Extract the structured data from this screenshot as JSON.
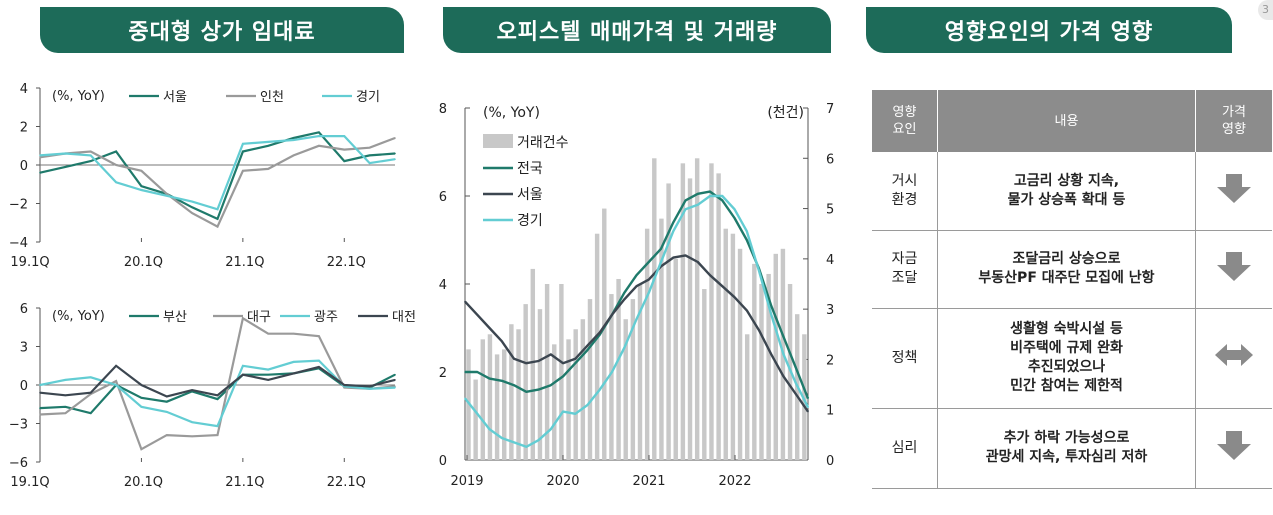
{
  "titles": {
    "panel1": "중대형 상가 임대료",
    "panel2": "오피스텔 매매가격 및 거래량",
    "panel3": "영향요인의 가격 영향"
  },
  "colors": {
    "banner": "#1d6b59",
    "teal": "#1f7a6b",
    "gray": "#9a9a9a",
    "cyan": "#63cdd3",
    "dark": "#3c4650",
    "bar": "#c8c8c8"
  },
  "corner_label": "3",
  "chart_data": [
    {
      "type": "line",
      "title": "중대형 상가 임대료 (상단)",
      "ylabel": "(%, YoY)",
      "ylim": [
        -4,
        4
      ],
      "yticks": [
        "4",
        "2",
        "0",
        "−2",
        "−4"
      ],
      "xticks": [
        "19.1Q",
        "20.1Q",
        "21.1Q",
        "22.1Q"
      ],
      "x": [
        0,
        1,
        2,
        3,
        4,
        5,
        6,
        7,
        8,
        9,
        10,
        11,
        12,
        13,
        14
      ],
      "series": [
        {
          "name": "서울",
          "values": [
            -0.4,
            -0.1,
            0.2,
            0.7,
            -1.1,
            -1.5,
            -2.2,
            -2.8,
            0.7,
            1.0,
            1.4,
            1.7,
            0.2,
            0.5,
            0.6
          ]
        },
        {
          "name": "인천",
          "values": [
            0.4,
            0.6,
            0.7,
            0.0,
            -0.3,
            -1.5,
            -2.5,
            -3.2,
            -0.3,
            -0.2,
            0.5,
            1.0,
            0.8,
            0.9,
            1.4
          ]
        },
        {
          "name": "경기",
          "values": [
            0.5,
            0.6,
            0.5,
            -0.9,
            -1.3,
            -1.6,
            -1.9,
            -2.3,
            1.1,
            1.2,
            1.3,
            1.5,
            1.5,
            0.1,
            0.3
          ]
        }
      ]
    },
    {
      "type": "line",
      "title": "중대형 상가 임대료 (하단)",
      "ylabel": "(%, YoY)",
      "ylim": [
        -6,
        6
      ],
      "yticks": [
        "6",
        "3",
        "0",
        "−3",
        "−6"
      ],
      "xticks": [
        "19.1Q",
        "20.1Q",
        "21.1Q",
        "22.1Q"
      ],
      "x": [
        0,
        1,
        2,
        3,
        4,
        5,
        6,
        7,
        8,
        9,
        10,
        11,
        12,
        13,
        14
      ],
      "series": [
        {
          "name": "부산",
          "values": [
            -1.8,
            -1.7,
            -2.2,
            0.0,
            -1.0,
            -1.3,
            -0.5,
            -1.1,
            0.8,
            0.8,
            0.9,
            1.3,
            -0.1,
            -0.2,
            0.8
          ]
        },
        {
          "name": "대구",
          "values": [
            -2.3,
            -2.2,
            -0.7,
            0.3,
            -5.0,
            -3.9,
            -4.0,
            -3.9,
            5.2,
            4.0,
            4.0,
            3.8,
            -0.2,
            -0.3,
            -0.1
          ]
        },
        {
          "name": "광주",
          "values": [
            0.0,
            0.4,
            0.6,
            0.0,
            -1.7,
            -2.1,
            -2.9,
            -3.2,
            1.5,
            1.2,
            1.8,
            1.9,
            -0.1,
            -0.3,
            -0.2
          ]
        },
        {
          "name": "대전",
          "values": [
            -0.6,
            -0.8,
            -0.6,
            1.5,
            0.0,
            -0.9,
            -0.4,
            -0.8,
            0.8,
            0.4,
            0.9,
            1.4,
            0.0,
            -0.1,
            0.4
          ]
        }
      ]
    },
    {
      "type": "line",
      "title": "오피스텔 매매가격 및 거래량",
      "ylabel": "(%, YoY)",
      "y2label": "(천건)",
      "ylim": [
        0,
        8
      ],
      "y2lim": [
        0,
        7
      ],
      "yticks": [
        "8",
        "6",
        "4",
        "2",
        "0"
      ],
      "y2ticks": [
        "7",
        "6",
        "5",
        "4",
        "3",
        "2",
        "1",
        "0"
      ],
      "xticks": [
        "2019",
        "2020",
        "2021",
        "2022"
      ],
      "bars": {
        "name": "거래건수",
        "values": [
          2.2,
          1.6,
          2.4,
          2.5,
          2.1,
          2.2,
          2.7,
          2.6,
          3.1,
          3.8,
          3.0,
          3.5,
          2.3,
          3.5,
          2.4,
          2.6,
          2.8,
          3.2,
          4.5,
          5.0,
          3.3,
          3.6,
          2.8,
          3.2,
          3.5,
          4.6,
          6.0,
          4.8,
          5.5,
          4.0,
          5.9,
          5.6,
          6.0,
          3.4,
          5.9,
          5.7,
          4.6,
          4.5,
          4.2,
          2.5,
          3.9,
          3.5,
          3.7,
          4.1,
          4.2,
          3.5,
          2.9,
          2.5
        ]
      },
      "series": [
        {
          "name": "전국",
          "values": [
            2.0,
            2.0,
            1.85,
            1.8,
            1.7,
            1.55,
            1.6,
            1.7,
            1.9,
            2.2,
            2.5,
            2.85,
            3.3,
            3.8,
            4.2,
            4.5,
            4.8,
            5.4,
            5.9,
            6.05,
            6.1,
            5.9,
            5.5,
            5.0,
            4.35,
            3.5,
            2.8,
            2.1,
            1.4
          ]
        },
        {
          "name": "서울",
          "values": [
            3.6,
            3.3,
            3.0,
            2.7,
            2.3,
            2.2,
            2.25,
            2.4,
            2.2,
            2.3,
            2.6,
            2.9,
            3.3,
            3.65,
            3.95,
            4.1,
            4.4,
            4.6,
            4.65,
            4.5,
            4.2,
            3.95,
            3.7,
            3.4,
            2.95,
            2.4,
            1.9,
            1.5,
            1.1
          ]
        },
        {
          "name": "경기",
          "values": [
            1.4,
            1.05,
            0.7,
            0.5,
            0.4,
            0.3,
            0.45,
            0.7,
            1.1,
            1.05,
            1.25,
            1.6,
            2.0,
            2.55,
            3.2,
            3.8,
            4.5,
            5.2,
            5.7,
            5.8,
            6.0,
            6.0,
            5.7,
            5.2,
            4.3,
            3.3,
            2.4,
            1.75,
            1.2
          ]
        }
      ]
    }
  ],
  "table": {
    "headers": [
      "영향\n요인",
      "내용",
      "가격\n영향"
    ],
    "rows": [
      {
        "factor": "거시\n환경",
        "content": "고금리 상황 지속,\n물가 상승폭 확대 등",
        "effect": "down"
      },
      {
        "factor": "자금\n조달",
        "content": "조달금리 상승으로\n부동산PF 대주단 모집에 난항",
        "effect": "down"
      },
      {
        "factor": "정책",
        "content": "생활형 숙박시설 등\n비주택에 규제 완화\n추진되었으나\n민간 참여는 제한적",
        "effect": "both"
      },
      {
        "factor": "심리",
        "content": "추가 하락 가능성으로\n관망세 지속, 투자심리 저하",
        "effect": "down"
      }
    ]
  }
}
